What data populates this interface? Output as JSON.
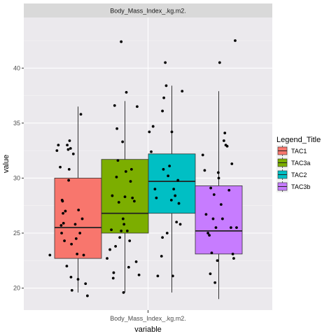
{
  "chart_data": {
    "type": "boxplot",
    "facet_label": "Body_Mass_Index_.kg.m2.",
    "categories": [
      "Body_Mass_Index_.kg.m2."
    ],
    "xlabel": "variable",
    "ylabel": "value",
    "ylim": [
      18,
      44.6
    ],
    "yticks": [
      20,
      25,
      30,
      35,
      40
    ],
    "legend": {
      "title": "Legend_Title",
      "position": "right"
    },
    "series": [
      {
        "name": "TAC1",
        "color": "#F8766D",
        "whisker_low": 19.6,
        "q1": 22.7,
        "median": 25.5,
        "q3": 30.0,
        "whisker_high": 36.5,
        "points": [
          [
            -0.6,
            23.0
          ],
          [
            -0.45,
            32.5
          ],
          [
            -0.42,
            33.0
          ],
          [
            -0.38,
            31.0
          ],
          [
            -0.36,
            25.7
          ],
          [
            -0.35,
            25.0
          ],
          [
            -0.34,
            28.0
          ],
          [
            -0.33,
            27.9
          ],
          [
            -0.32,
            26.8
          ],
          [
            -0.31,
            25.9
          ],
          [
            -0.29,
            24.3
          ],
          [
            -0.27,
            27.0
          ],
          [
            -0.24,
            22.0
          ],
          [
            -0.23,
            33.0
          ],
          [
            -0.21,
            32.6
          ],
          [
            -0.2,
            29.8
          ],
          [
            -0.19,
            30.8
          ],
          [
            -0.18,
            33.4
          ],
          [
            -0.16,
            32.7
          ],
          [
            -0.15,
            21.0
          ],
          [
            -0.14,
            24.0
          ],
          [
            -0.13,
            19.8
          ],
          [
            -0.1,
            32.2
          ],
          [
            -0.06,
            25.8
          ],
          [
            -0.04,
            24.5
          ],
          [
            -0.02,
            23.1
          ],
          [
            0.0,
            20.8
          ],
          [
            0.01,
            27.1
          ],
          [
            0.04,
            25.0
          ],
          [
            0.06,
            35.8
          ],
          [
            0.09,
            26.3
          ],
          [
            0.12,
            23.0
          ],
          [
            0.16,
            20.4
          ],
          [
            0.2,
            19.3
          ]
        ]
      },
      {
        "name": "TAC3a",
        "color": "#7CAE00",
        "whisker_low": 19.6,
        "q1": 25.0,
        "median": 26.8,
        "q3": 31.7,
        "whisker_high": 37.0,
        "points": [
          [
            -0.38,
            22.7
          ],
          [
            -0.32,
            23.5
          ],
          [
            -0.29,
            25.3
          ],
          [
            -0.27,
            28.4
          ],
          [
            -0.25,
            20.9
          ],
          [
            -0.24,
            21.4
          ],
          [
            -0.22,
            36.6
          ],
          [
            -0.2,
            23.8
          ],
          [
            -0.18,
            30.1
          ],
          [
            -0.17,
            34.5
          ],
          [
            -0.15,
            31.6
          ],
          [
            -0.13,
            27.8
          ],
          [
            -0.11,
            24.6
          ],
          [
            -0.08,
            25.2
          ],
          [
            -0.05,
            33.3
          ],
          [
            -0.04,
            26.3
          ],
          [
            -0.03,
            19.6
          ],
          [
            -0.02,
            25.8
          ],
          [
            0.0,
            28.3
          ],
          [
            0.02,
            30.6
          ],
          [
            0.03,
            37.8
          ],
          [
            0.05,
            25.2
          ],
          [
            0.08,
            21.9
          ],
          [
            0.1,
            24.3
          ],
          [
            0.12,
            29.7
          ],
          [
            0.14,
            30.8
          ],
          [
            0.16,
            28.2
          ],
          [
            0.2,
            27.9
          ],
          [
            0.24,
            22.4
          ],
          [
            0.26,
            36.5
          ],
          [
            0.3,
            21.2
          ],
          [
            -0.08,
            42.4
          ]
        ]
      },
      {
        "name": "TAC2",
        "color": "#00BFC4",
        "whisker_low": 19.6,
        "q1": 26.8,
        "median": 29.7,
        "q3": 32.2,
        "whisker_high": 38.4,
        "points": [
          [
            -0.48,
            34.2
          ],
          [
            -0.44,
            32.4
          ],
          [
            -0.4,
            34.7
          ],
          [
            -0.36,
            29.0
          ],
          [
            -0.33,
            28.2
          ],
          [
            -0.2,
            36.1
          ],
          [
            -0.17,
            37.3
          ],
          [
            -0.14,
            40.5
          ],
          [
            -0.12,
            38.4
          ],
          [
            -0.1,
            25.0
          ],
          [
            -0.08,
            30.2
          ],
          [
            -0.05,
            31.1
          ],
          [
            -0.01,
            28.0
          ],
          [
            0.0,
            34.2
          ],
          [
            0.02,
            21.1
          ],
          [
            0.04,
            29.0
          ],
          [
            0.07,
            28.4
          ],
          [
            0.1,
            26.0
          ],
          [
            0.13,
            29.8
          ],
          [
            0.15,
            27.7
          ],
          [
            0.18,
            25.8
          ],
          [
            0.22,
            37.9
          ],
          [
            -0.2,
            24.6
          ],
          [
            -0.22,
            22.9
          ],
          [
            -0.18,
            30.8
          ],
          [
            -0.3,
            21.1
          ]
        ]
      },
      {
        "name": "TAC3b",
        "color": "#C77CFF",
        "whisker_low": 19.0,
        "q1": 23.1,
        "median": 25.2,
        "q3": 29.3,
        "whisker_high": 37.9,
        "points": [
          [
            -0.34,
            32.1
          ],
          [
            -0.3,
            30.7
          ],
          [
            -0.27,
            26.7
          ],
          [
            -0.23,
            25.0
          ],
          [
            -0.2,
            24.8
          ],
          [
            -0.18,
            21.3
          ],
          [
            -0.15,
            23.2
          ],
          [
            -0.12,
            26.3
          ],
          [
            -0.1,
            28.5
          ],
          [
            -0.08,
            20.5
          ],
          [
            -0.06,
            25.5
          ],
          [
            -0.03,
            22.5
          ],
          [
            -0.01,
            30.5
          ],
          [
            0.02,
            40.5
          ],
          [
            0.05,
            27.6
          ],
          [
            0.08,
            26.3
          ],
          [
            0.11,
            33.4
          ],
          [
            0.13,
            34.1
          ],
          [
            0.15,
            33.0
          ],
          [
            0.18,
            32.9
          ],
          [
            0.22,
            28.9
          ],
          [
            0.26,
            25.5
          ],
          [
            0.28,
            31.3
          ],
          [
            0.3,
            23.1
          ],
          [
            0.32,
            22.7
          ],
          [
            0.35,
            42.5
          ],
          [
            0.38,
            25.5
          ],
          [
            -0.17,
            29.1
          ],
          [
            0.0,
            30.0
          ]
        ]
      }
    ]
  }
}
